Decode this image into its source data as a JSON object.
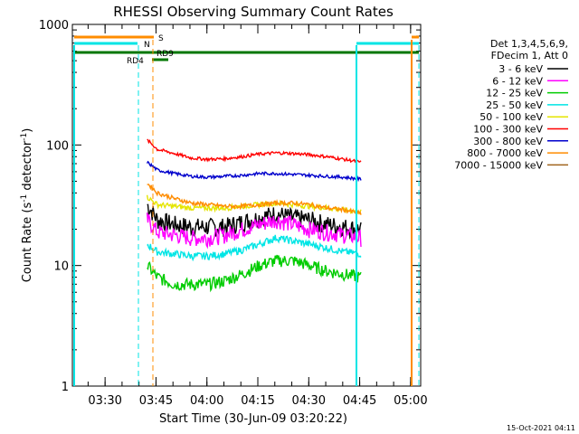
{
  "chart_data": {
    "type": "line",
    "title": "RHESSI Observing Summary Count Rates",
    "xlabel": "Start Time (30-Jun-09 03:20:22)",
    "ylabel_main": "Count Rate (s",
    "ylabel_sup1": "-1",
    "ylabel_mid": " detector",
    "ylabel_sup2": "-1",
    "ylabel_end": ")",
    "yscale": "log",
    "ylim": [
      1,
      1000
    ],
    "xlim": [
      "03:20:22",
      "05:03:00"
    ],
    "x_ticks": [
      "03:30",
      "03:45",
      "04:00",
      "04:15",
      "04:30",
      "04:45",
      "05:00"
    ],
    "y_ticks": [
      "1",
      "10",
      "100",
      "1000"
    ],
    "timestamp": "15-Oct-2021 04:11",
    "legend_header": [
      "Det 1,3,4,5,6,9,",
      "FDecim 1, Att 0"
    ],
    "x_minutes_after_0320": [
      22,
      25,
      30,
      35,
      40,
      45,
      50,
      55,
      60,
      65,
      70,
      75,
      80,
      85
    ],
    "series": [
      {
        "name": "3 - 6 keV",
        "color": "#000000",
        "values": [
          32,
          24,
          22,
          21,
          21,
          21,
          23,
          25,
          27,
          25,
          24,
          22,
          21,
          20
        ]
      },
      {
        "name": "6 - 12 keV",
        "color": "#ff00ff",
        "values": [
          24,
          19,
          18,
          17,
          17,
          18,
          20,
          22,
          24,
          22,
          20,
          19,
          18,
          17
        ]
      },
      {
        "name": "12 - 25 keV",
        "color": "#00cc00",
        "values": [
          10,
          8,
          7,
          7,
          7,
          7.5,
          8.5,
          10,
          11,
          11,
          10,
          9,
          8.5,
          8
        ]
      },
      {
        "name": "25 - 50 keV",
        "color": "#00e5e5",
        "values": [
          15,
          13,
          12.5,
          12,
          12,
          12.5,
          13.5,
          15,
          17,
          16,
          15,
          14,
          13,
          12.5
        ]
      },
      {
        "name": "50 - 100 keV",
        "color": "#e5e500",
        "values": [
          37,
          32,
          31,
          30,
          30,
          30,
          31,
          32,
          33,
          32,
          31,
          30,
          29,
          28
        ]
      },
      {
        "name": "100 - 300 keV",
        "color": "#ff0000",
        "values": [
          110,
          92,
          85,
          78,
          76,
          77,
          80,
          84,
          86,
          85,
          83,
          80,
          76,
          72
        ]
      },
      {
        "name": "300 - 800 keV",
        "color": "#0000cc",
        "values": [
          72,
          62,
          58,
          55,
          54,
          55,
          56,
          58,
          58,
          57,
          56,
          55,
          54,
          52
        ]
      },
      {
        "name": "800 - 7000 keV",
        "color": "#ff8c00",
        "values": [
          48,
          40,
          36,
          33,
          32,
          31,
          31,
          32,
          33,
          33,
          32,
          30,
          29,
          27
        ]
      },
      {
        "name": "7000 - 15000 keV",
        "color": "#a0641e",
        "values": [
          null,
          null,
          null,
          null,
          null,
          null,
          null,
          null,
          null,
          null,
          null,
          null,
          null,
          null
        ]
      }
    ],
    "flags": [
      {
        "label": "S",
        "color": "#ff8c00"
      },
      {
        "label": "N",
        "color": "#00e5e5"
      },
      {
        "label": "RD9",
        "color": "#007700"
      },
      {
        "label": "RD4",
        "color": "#007700"
      }
    ]
  }
}
